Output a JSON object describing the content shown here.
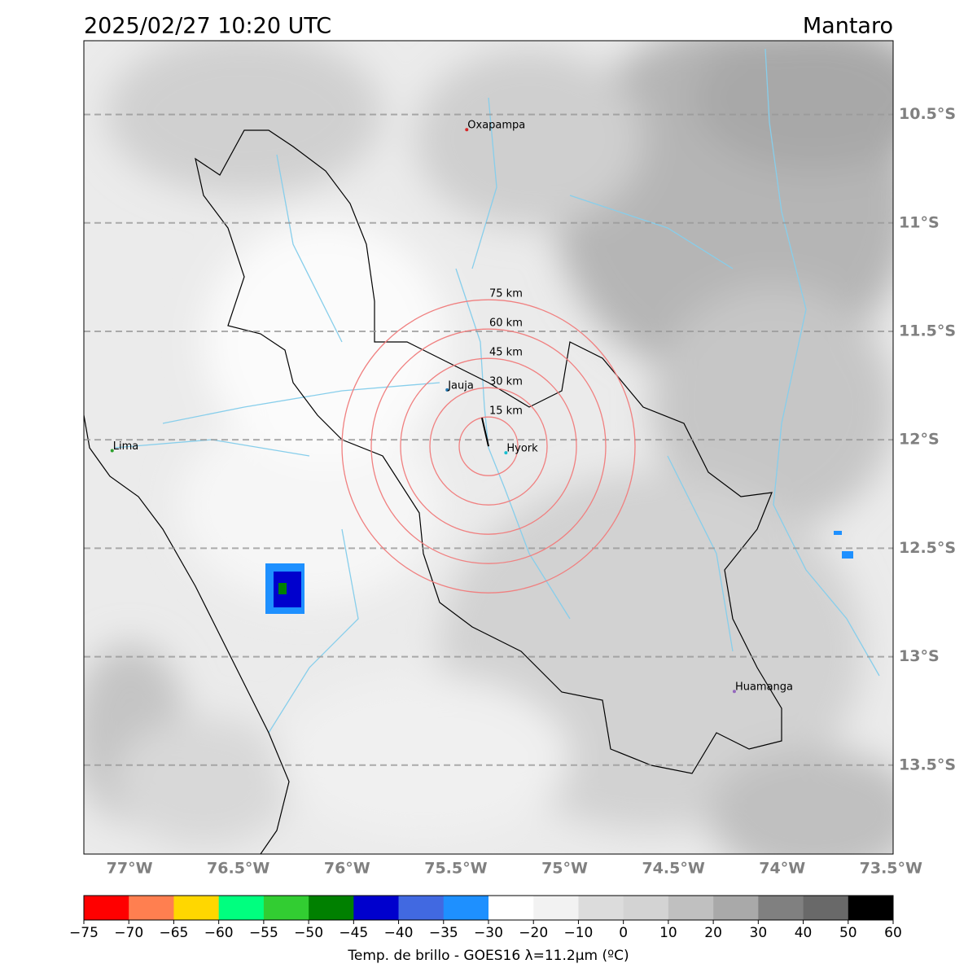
{
  "header": {
    "title": "2025/02/27 10:20 UTC",
    "region": "Mantaro"
  },
  "map": {
    "lon_lim": [
      -77.21,
      -73.49
    ],
    "lat_lim": [
      -13.91,
      -10.16
    ],
    "lat_ticks": [
      {
        "value": -10.5,
        "label": "10.5°S"
      },
      {
        "value": -11,
        "label": "11°S"
      },
      {
        "value": -11.5,
        "label": "11.5°S"
      },
      {
        "value": -12,
        "label": "12°S"
      },
      {
        "value": -12.5,
        "label": "12.5°S"
      },
      {
        "value": -13,
        "label": "13°S"
      },
      {
        "value": -13.5,
        "label": "13.5°S"
      }
    ],
    "lon_ticks": [
      {
        "value": -77,
        "label": "77°W"
      },
      {
        "value": -76.5,
        "label": "76.5°W"
      },
      {
        "value": -76,
        "label": "76°W"
      },
      {
        "value": -75.5,
        "label": "75.5°W"
      },
      {
        "value": -75,
        "label": "75°W"
      },
      {
        "value": -74.5,
        "label": "74.5°W"
      },
      {
        "value": -74,
        "label": "74°W"
      },
      {
        "value": -73.5,
        "label": "73.5°W"
      }
    ],
    "cities": [
      {
        "name": "Oxapampa",
        "lon": -75.45,
        "lat": -10.57,
        "color": "#d62728"
      },
      {
        "name": "Jauja",
        "lon": -75.54,
        "lat": -11.77,
        "color": "#1f77b4"
      },
      {
        "name": "Hyork",
        "lon": -75.27,
        "lat": -12.06,
        "color": "#17becf"
      },
      {
        "name": "Lima",
        "lon": -77.08,
        "lat": -12.05,
        "color": "#2ca02c"
      },
      {
        "name": "Huamanga",
        "lon": -74.22,
        "lat": -13.16,
        "color": "#9467bd"
      }
    ],
    "rings": {
      "center_lon": -75.35,
      "center_lat": -12.03,
      "color": "#f08080",
      "radii": [
        {
          "value": 15,
          "label": "15 km"
        },
        {
          "value": 30,
          "label": "30 km"
        },
        {
          "value": 45,
          "label": "45 km"
        },
        {
          "value": 60,
          "label": "60 km"
        },
        {
          "value": 75,
          "label": "75 km"
        }
      ]
    }
  },
  "colorbar": {
    "label": "Temp. de brillo - GOES16 λ=11.2μm (ºC)",
    "bounds": [
      {
        "value": -75,
        "label": "−75"
      },
      {
        "value": -70,
        "label": "−70"
      },
      {
        "value": -65,
        "label": "−65"
      },
      {
        "value": -60,
        "label": "−60"
      },
      {
        "value": -55,
        "label": "−55"
      },
      {
        "value": -50,
        "label": "−50"
      },
      {
        "value": -45,
        "label": "−45"
      },
      {
        "value": -40,
        "label": "−40"
      },
      {
        "value": -35,
        "label": "−35"
      },
      {
        "value": -30,
        "label": "−30"
      },
      {
        "value": -20,
        "label": "−20"
      },
      {
        "value": -10,
        "label": "−10"
      },
      0,
      10,
      20,
      30,
      40,
      50,
      60
    ],
    "colors": [
      "#ff0000",
      "#ff7f50",
      "#ffd700",
      "#00ff7f",
      "#32cd32",
      "#008000",
      "#0000cd",
      "#4169e1",
      "#1e90ff",
      "#ffffff",
      "#f2f2f2",
      "#dcdcdc",
      "#d3d3d3",
      "#c0c0c0",
      "#a9a9a9",
      "#808080",
      "#696969",
      "#000000"
    ]
  }
}
